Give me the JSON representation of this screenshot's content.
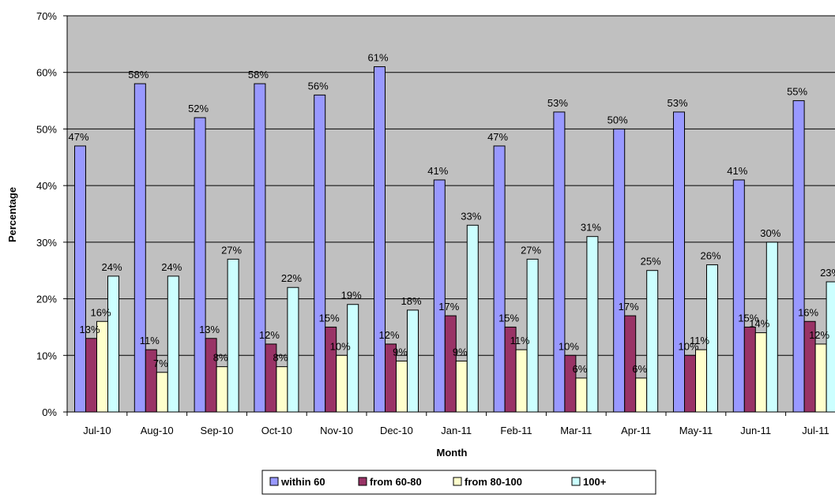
{
  "chart_data": {
    "type": "bar",
    "title": "",
    "xlabel": "Month",
    "ylabel": "Percentage",
    "ylim": [
      0,
      70
    ],
    "y_ticks": [
      "0%",
      "10%",
      "20%",
      "30%",
      "40%",
      "50%",
      "60%",
      "70%"
    ],
    "grid": "horizontal",
    "legend_position": "bottom",
    "plot_background": "#c0c0c0",
    "categories": [
      "Jul-10",
      "Aug-10",
      "Sep-10",
      "Oct-10",
      "Nov-10",
      "Dec-10",
      "Jan-11",
      "Feb-11",
      "Mar-11",
      "Apr-11",
      "May-11",
      "Jun-11",
      "Jul-11"
    ],
    "series": [
      {
        "name": "within 60",
        "color": "#9999ff",
        "values": [
          47,
          58,
          52,
          58,
          56,
          61,
          41,
          47,
          53,
          50,
          53,
          41,
          55
        ]
      },
      {
        "name": "from 60-80",
        "color": "#993366",
        "values": [
          13,
          11,
          13,
          12,
          15,
          12,
          17,
          15,
          10,
          17,
          10,
          15,
          16
        ]
      },
      {
        "name": "from  80-100",
        "color": "#ffffcc",
        "values": [
          16,
          7,
          8,
          8,
          10,
          9,
          9,
          11,
          6,
          6,
          11,
          14,
          12
        ]
      },
      {
        "name": "100+",
        "color": "#ccffff",
        "values": [
          24,
          24,
          27,
          22,
          19,
          18,
          33,
          27,
          31,
          25,
          26,
          30,
          23
        ]
      }
    ],
    "label_suffix": "%"
  }
}
